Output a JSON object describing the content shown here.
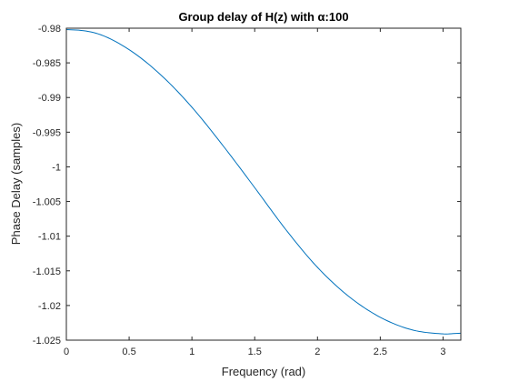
{
  "chart_data": {
    "type": "line",
    "title": "Group delay of H(z) with α:100",
    "xlabel": "Frequency (rad)",
    "ylabel": "Phase Delay (samples)",
    "xlim": [
      0,
      3.14159
    ],
    "ylim": [
      -1.025,
      -0.98
    ],
    "xticks": [
      0,
      0.5,
      1,
      1.5,
      2,
      2.5,
      3
    ],
    "xtick_labels": [
      "0",
      "0.5",
      "1",
      "1.5",
      "2",
      "2.5",
      "3"
    ],
    "yticks": [
      -0.98,
      -0.985,
      -0.99,
      -0.995,
      -1,
      -1.005,
      -1.01,
      -1.015,
      -1.02,
      -1.025
    ],
    "ytick_labels": [
      "-0.98",
      "-0.985",
      "-0.99",
      "-0.995",
      "-1",
      "-1.005",
      "-1.01",
      "-1.015",
      "-1.02",
      "-1.025"
    ],
    "grid": false,
    "box": true,
    "line_color": "#0072BD",
    "series": [
      {
        "x": [
          0,
          0.25,
          0.5,
          0.75,
          1.0,
          1.25,
          1.5,
          1.75,
          2.0,
          2.25,
          2.5,
          2.75,
          3.0,
          3.14159
        ],
        "values": [
          -0.9802,
          -0.9808,
          -0.9831,
          -0.9867,
          -0.9914,
          -0.997,
          -1.003,
          -1.0091,
          -1.0145,
          -1.0187,
          -1.0217,
          -1.0235,
          -1.0241,
          -1.024
        ]
      }
    ]
  }
}
